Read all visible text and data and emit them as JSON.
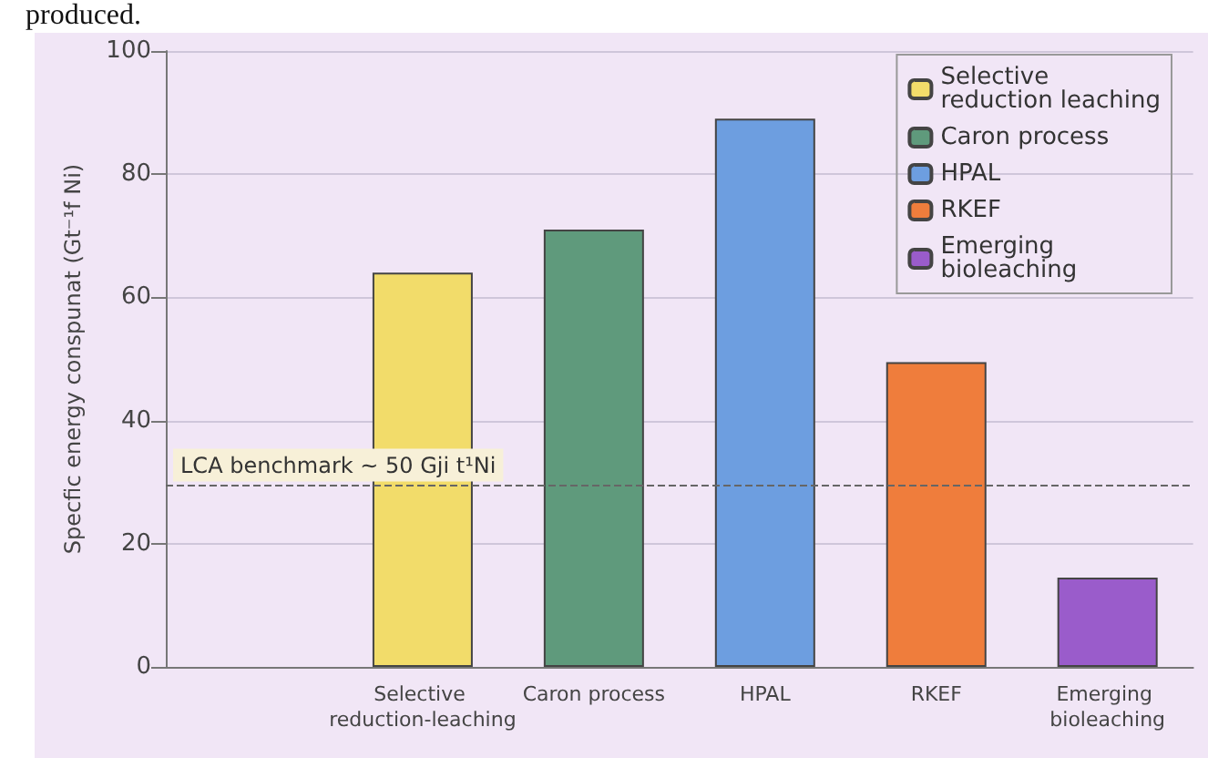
{
  "chart_data": {
    "type": "bar",
    "annotations": [
      "produced."
    ],
    "ylabel": "Specfic energy conspunat (Gt⁻¹f Ni)",
    "categories": [
      null,
      "Selective reduction-leaching",
      "Caron process",
      "HPAL",
      "RKEF",
      "Emerging bioleaching"
    ],
    "series": [
      {
        "name": "Selective reduction leaching",
        "color": "#f2dc6a",
        "values": [
          null,
          64,
          null,
          null,
          null,
          null
        ]
      },
      {
        "name": "Caron process",
        "color": "#5f9a7c",
        "values": [
          null,
          null,
          71,
          null,
          null,
          null
        ]
      },
      {
        "name": "HPAL",
        "color": "#6d9ee0",
        "values": [
          null,
          null,
          null,
          89,
          null,
          null
        ]
      },
      {
        "name": "RKEF",
        "color": "#ef7d3c",
        "values": [
          null,
          null,
          null,
          null,
          49.5,
          null
        ]
      },
      {
        "name": "Emerging bioleaching",
        "color": "#9a5ccb",
        "values": [
          null,
          null,
          null,
          null,
          null,
          14.5
        ]
      }
    ],
    "ylim": [
      0,
      100
    ],
    "yticks": [
      0,
      20,
      40,
      60,
      80,
      100
    ],
    "ref_lines": [
      {
        "axis": "y",
        "value": 29.5,
        "label": "LCA benchmark ~ 50 Gji t¹Ni",
        "line_style": "dashed",
        "color": "#666666"
      }
    ],
    "grid": "y",
    "legend": "top right"
  }
}
